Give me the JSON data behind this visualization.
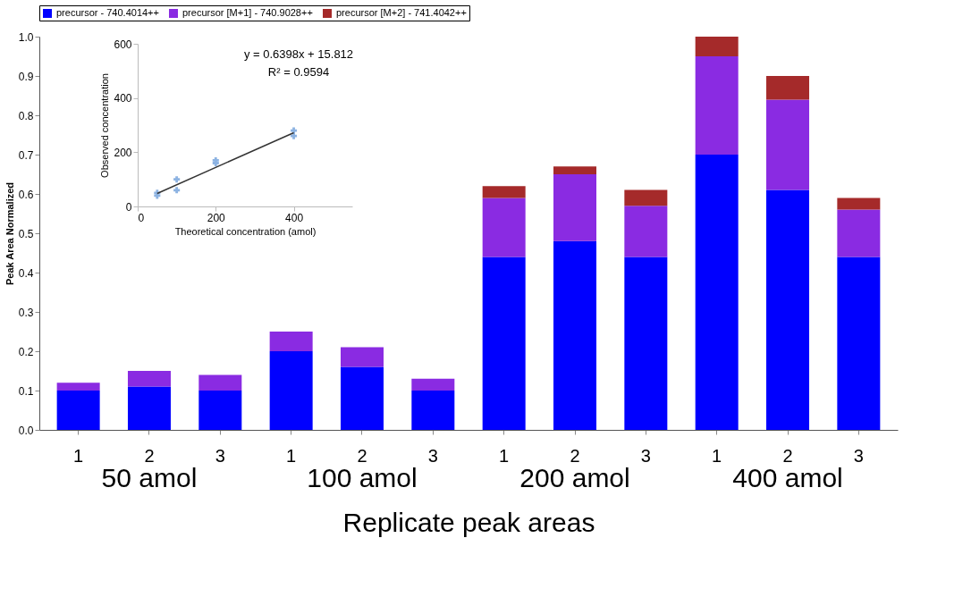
{
  "chart_data": [
    {
      "type": "bar",
      "stacked": true,
      "ylabel": "Peak Area Normalized",
      "xlabel": "Replicate peak areas",
      "categories": [
        "1",
        "2",
        "3",
        "1",
        "2",
        "3",
        "1",
        "2",
        "3",
        "1",
        "2",
        "3"
      ],
      "series": [
        {
          "name": "precursor - 740.4014++",
          "color": "#0000ff",
          "values": [
            0.1,
            0.11,
            0.1,
            0.2,
            0.16,
            0.1,
            0.44,
            0.48,
            0.44,
            0.7,
            0.61,
            0.44
          ]
        },
        {
          "name": "precursor [M+1] - 740.9028++",
          "color": "#8a2be2",
          "values": [
            0.02,
            0.04,
            0.04,
            0.05,
            0.05,
            0.03,
            0.15,
            0.17,
            0.13,
            0.25,
            0.23,
            0.12
          ]
        },
        {
          "name": "precursor [M+2] - 741.4042++",
          "color": "#a52a2a",
          "values": [
            0,
            0,
            0,
            0,
            0,
            0,
            0.03,
            0.02,
            0.04,
            0.05,
            0.06,
            0.03
          ]
        }
      ],
      "ylim": [
        0,
        1.0
      ],
      "yticks": [
        {
          "value": 0,
          "label": "0.0"
        },
        {
          "value": 0.1,
          "label": "0.1"
        },
        {
          "value": 0.2,
          "label": "0.2"
        },
        {
          "value": 0.3,
          "label": "0.3"
        },
        {
          "value": 0.4,
          "label": "0.4"
        },
        {
          "value": 0.5,
          "label": "0.5"
        },
        {
          "value": 0.6,
          "label": "0.6"
        },
        {
          "value": 0.7,
          "label": "0.7"
        },
        {
          "value": 0.8,
          "label": "0.8"
        },
        {
          "value": 0.9,
          "label": "0.9"
        },
        {
          "value": 1.0,
          "label": "1.0"
        }
      ],
      "annotations": [
        "50 amol",
        "100 amol",
        "200 amol",
        "400 amol"
      ],
      "legend": "top",
      "grid": false
    },
    {
      "type": "scatter",
      "xlabel": "Theoretical concentration (amol)",
      "ylabel": "Observed concentration",
      "x": [
        50,
        50,
        100,
        100,
        200,
        200,
        400,
        400
      ],
      "series": [
        {
          "color": "#8db3e2",
          "values": [
            50,
            40,
            100,
            60,
            170,
            160,
            280,
            260
          ]
        },
        {
          "type": "line",
          "marker": "none",
          "color": "#333333",
          "x": [
            50,
            400
          ],
          "values": [
            48,
            272
          ]
        }
      ],
      "xlim": [
        0,
        550
      ],
      "xticks": [
        0,
        200,
        400
      ],
      "ylim": [
        0,
        600
      ],
      "yticks": [
        0,
        200,
        400,
        600
      ],
      "annotations": [
        "y = 0.6398x + 15.812",
        "R² = 0.9594"
      ],
      "marker": "cross",
      "grid": false
    }
  ]
}
